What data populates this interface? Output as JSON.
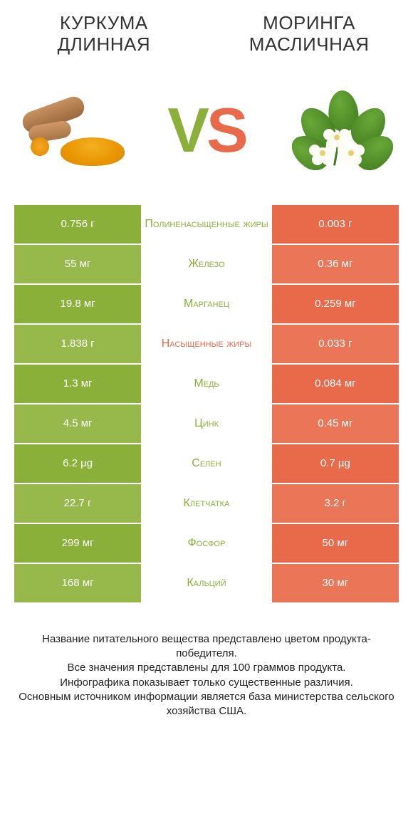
{
  "colors": {
    "left_primary": "#8bb03a",
    "left_alt": "#97b94b",
    "right_primary": "#e86a4a",
    "right_alt": "#ea7557",
    "text_dark": "#333333"
  },
  "header": {
    "left_title": "Куркума длинная",
    "right_title": "Моринга масличная"
  },
  "vs": {
    "v": "V",
    "s": "S"
  },
  "rows": [
    {
      "left": "0.756 г",
      "label": "Полиненасыщенные жиры",
      "right": "0.003 г",
      "winner": "left"
    },
    {
      "left": "55 мг",
      "label": "Железо",
      "right": "0.36 мг",
      "winner": "left"
    },
    {
      "left": "19.8 мг",
      "label": "Марганец",
      "right": "0.259 мг",
      "winner": "left"
    },
    {
      "left": "1.838 г",
      "label": "Насыщенные жиры",
      "right": "0.033 г",
      "winner": "right"
    },
    {
      "left": "1.3 мг",
      "label": "Медь",
      "right": "0.084 мг",
      "winner": "left"
    },
    {
      "left": "4.5 мг",
      "label": "Цинк",
      "right": "0.45 мг",
      "winner": "left"
    },
    {
      "left": "6.2 µg",
      "label": "Селен",
      "right": "0.7 µg",
      "winner": "left"
    },
    {
      "left": "22.7 г",
      "label": "Клетчатка",
      "right": "3.2 г",
      "winner": "left"
    },
    {
      "left": "299 мг",
      "label": "Фосфор",
      "right": "50 мг",
      "winner": "left"
    },
    {
      "left": "168 мг",
      "label": "Кальций",
      "right": "30 мг",
      "winner": "left"
    }
  ],
  "footer": {
    "line1": "Название питательного вещества представлено цветом продукта-победителя.",
    "line2": "Все значения представлены для 100 граммов продукта.",
    "line3": "Инфографика показывает только существенные различия.",
    "line4": "Основным источником информации является база министерства сельского хозяйства США."
  }
}
